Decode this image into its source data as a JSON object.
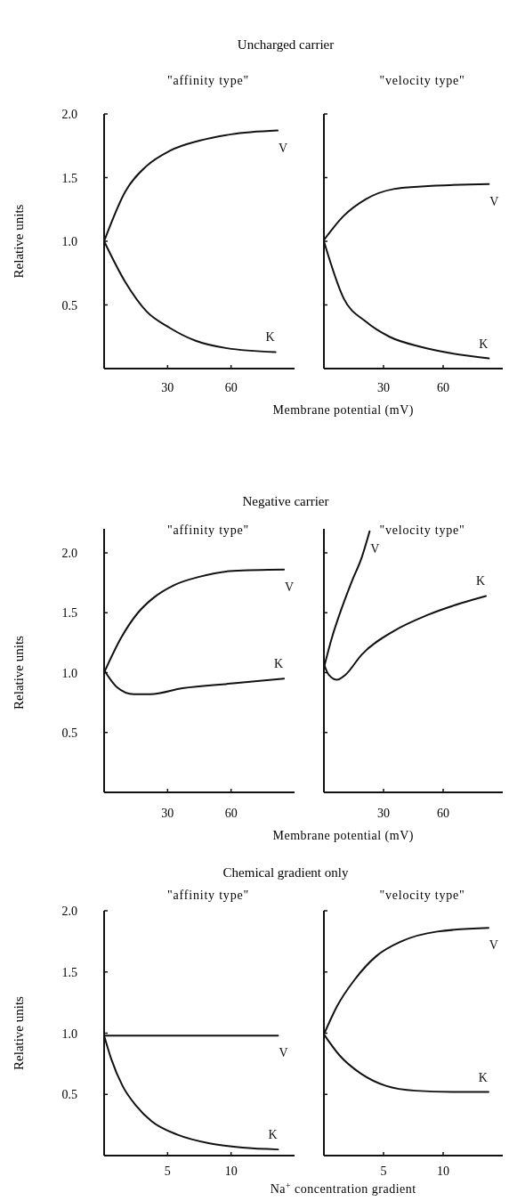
{
  "chart_data": [
    {
      "type": "line",
      "title": "Uncharged carrier",
      "subtitle": "\"affinity type\"",
      "ylabel": "Relative units",
      "xlim": [
        0,
        90
      ],
      "xticks": [
        30,
        60
      ],
      "ylim": [
        0,
        2
      ],
      "yticks": [
        {
          "value": 0.5,
          "label": "0.5"
        },
        {
          "value": 1,
          "label": "1.0"
        },
        {
          "value": 1.5,
          "label": "1.5"
        },
        {
          "value": 2,
          "label": "2.0"
        }
      ],
      "color": "#111111",
      "series": [
        {
          "name": "V",
          "x": [
            0,
            10,
            20,
            31,
            45,
            60,
            82
          ],
          "values": [
            1.0,
            1.39,
            1.59,
            1.71,
            1.79,
            1.84,
            1.87
          ]
        },
        {
          "name": "K",
          "x": [
            0,
            10,
            20,
            31,
            43,
            58,
            81
          ],
          "values": [
            1.0,
            0.68,
            0.45,
            0.32,
            0.22,
            0.16,
            0.13
          ]
        }
      ]
    },
    {
      "type": "line",
      "subtitle": "\"velocity type\"",
      "xlabel": "Membrane potential (mV)",
      "xlim": [
        0,
        90
      ],
      "xticks": [
        30,
        60
      ],
      "ylim": [
        0,
        2
      ],
      "yticks": [
        {
          "value": 0.5,
          "label": null
        },
        {
          "value": 1,
          "label": null
        },
        {
          "value": 1.5,
          "label": null
        },
        {
          "value": 2,
          "label": null
        }
      ],
      "tick_labels": "x",
      "color": "#111111",
      "series": [
        {
          "name": "V",
          "x": [
            0,
            10,
            21,
            35,
            49,
            83
          ],
          "values": [
            1.01,
            1.2,
            1.33,
            1.41,
            1.43,
            1.45
          ]
        },
        {
          "name": "K",
          "x": [
            0,
            10,
            21,
            33,
            49,
            64,
            83
          ],
          "values": [
            1.0,
            0.55,
            0.37,
            0.25,
            0.17,
            0.12,
            0.08
          ]
        }
      ]
    },
    {
      "type": "line",
      "title": "Negative carrier",
      "subtitle": "\"affinity type\"",
      "ylabel": "Relative units",
      "xlim": [
        0,
        90
      ],
      "xticks": [
        30,
        60
      ],
      "ylim": [
        0,
        2.2
      ],
      "yticks": [
        {
          "value": 0.5,
          "label": "0.5"
        },
        {
          "value": 1,
          "label": "1.0"
        },
        {
          "value": 1.5,
          "label": "1.5"
        },
        {
          "value": 2,
          "label": "2.0"
        }
      ],
      "color": "#111111",
      "series": [
        {
          "name": "V",
          "x": [
            0,
            8,
            16,
            23,
            33,
            45,
            61,
            85
          ],
          "values": [
            1.0,
            1.29,
            1.5,
            1.62,
            1.73,
            1.8,
            1.85,
            1.86
          ]
        },
        {
          "name": "K",
          "x": [
            0,
            6,
            14,
            22,
            37,
            61,
            85
          ],
          "values": [
            1.02,
            0.88,
            0.82,
            0.82,
            0.87,
            0.91,
            0.95
          ]
        }
      ]
    },
    {
      "type": "line",
      "subtitle": "\"velocity type\"",
      "xlabel": "Membrane potential (mV)",
      "xlim": [
        0,
        90
      ],
      "xticks": [
        30,
        60
      ],
      "ylim": [
        0,
        2.2
      ],
      "yticks": [
        {
          "value": 0.5,
          "label": null
        },
        {
          "value": 1,
          "label": null
        },
        {
          "value": 1.5,
          "label": null
        },
        {
          "value": 2,
          "label": null
        }
      ],
      "tick_labels": "x",
      "color": "#111111",
      "series": [
        {
          "name": "V",
          "x": [
            0,
            4,
            9,
            14,
            19,
            23
          ],
          "values": [
            1.04,
            1.29,
            1.54,
            1.76,
            1.96,
            2.18
          ]
        },
        {
          "name": "K",
          "x": [
            0,
            2.5,
            6.6,
            10.7,
            19,
            35.5,
            52,
            69,
            81.5
          ],
          "values": [
            1.07,
            0.98,
            0.94,
            0.98,
            1.15,
            1.35,
            1.48,
            1.58,
            1.64
          ]
        }
      ]
    },
    {
      "type": "line",
      "title": "Chemical gradient only",
      "subtitle": "\"affinity type\"",
      "ylabel": "Relative units",
      "xlim": [
        0,
        15
      ],
      "xticks": [
        5,
        10
      ],
      "ylim": [
        0,
        2
      ],
      "yticks": [
        {
          "value": 0.5,
          "label": "0.5"
        },
        {
          "value": 1,
          "label": "1.0"
        },
        {
          "value": 1.5,
          "label": "1.5"
        },
        {
          "value": 2,
          "label": "2.0"
        }
      ],
      "color": "#111111",
      "series": [
        {
          "name": "V",
          "x": [
            0,
            13.7
          ],
          "values": [
            0.98,
            0.98
          ]
        },
        {
          "name": "K",
          "x": [
            0,
            0.56,
            1.45,
            2.5,
            3.75,
            5.8,
            8.3,
            10.9,
            13.7
          ],
          "values": [
            0.98,
            0.79,
            0.57,
            0.41,
            0.28,
            0.17,
            0.1,
            0.065,
            0.05
          ]
        }
      ]
    },
    {
      "type": "line",
      "subtitle": "\"velocity type\"",
      "xlabel": "Na$^{+}$ concentration gradient",
      "xlim": [
        0,
        15
      ],
      "xticks": [
        5,
        10
      ],
      "ylim": [
        0,
        2
      ],
      "yticks": [
        {
          "value": 0.5,
          "label": null
        },
        {
          "value": 1,
          "label": null
        },
        {
          "value": 1.5,
          "label": null
        },
        {
          "value": 2,
          "label": null
        }
      ],
      "tick_labels": "x",
      "color": "#111111",
      "series": [
        {
          "name": "V",
          "x": [
            0,
            1.1,
            2.6,
            4.4,
            6.5,
            9.5,
            13.8
          ],
          "values": [
            0.99,
            1.22,
            1.44,
            1.63,
            1.75,
            1.83,
            1.86
          ]
        },
        {
          "name": "K",
          "x": [
            0,
            1.3,
            3.1,
            5.2,
            7.7,
            10.8,
            13.8
          ],
          "values": [
            0.99,
            0.82,
            0.67,
            0.57,
            0.53,
            0.52,
            0.52
          ]
        }
      ]
    }
  ]
}
